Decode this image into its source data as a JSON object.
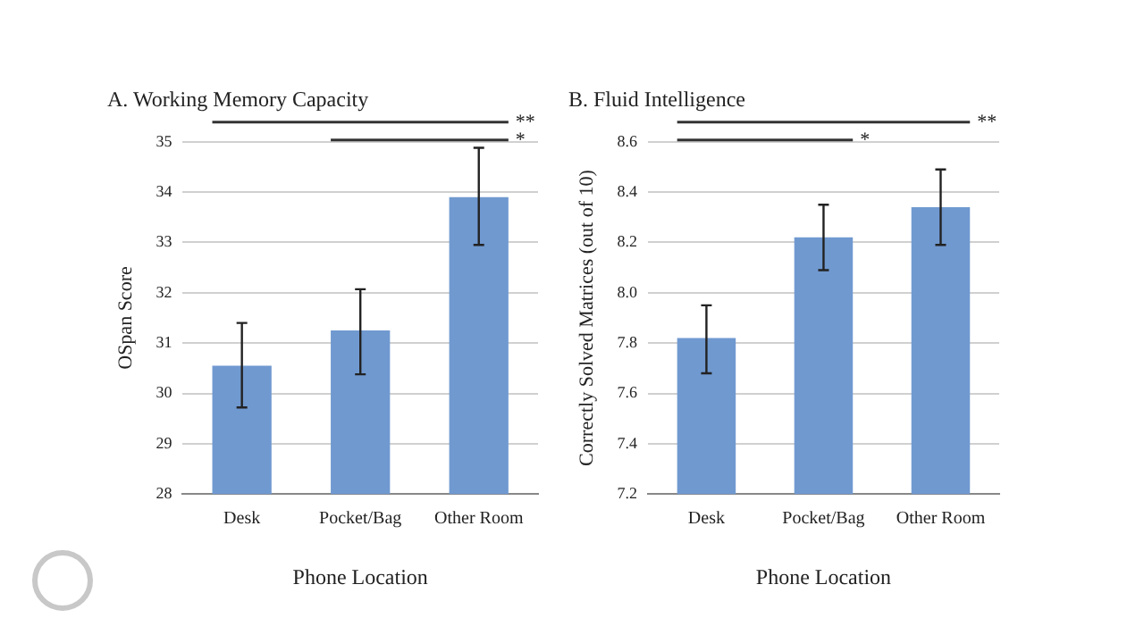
{
  "chart_data": [
    {
      "type": "bar",
      "title": "A. Working Memory Capacity",
      "xlabel": "Phone Location",
      "ylabel": "OSpan Score",
      "categories": [
        "Desk",
        "Pocket/Bag",
        "Other Room"
      ],
      "values": [
        30.55,
        31.25,
        33.9
      ],
      "errors": [
        [
          29.72,
          31.4
        ],
        [
          30.38,
          32.07
        ],
        [
          32.95,
          34.88
        ]
      ],
      "color": "#7099d0",
      "ylim": [
        28,
        35
      ],
      "yticks": [
        28,
        29,
        30,
        31,
        32,
        33,
        34,
        35
      ],
      "grid": "y",
      "legend": false,
      "annotations": [
        "**",
        "*"
      ]
    },
    {
      "type": "bar",
      "title": "B. Fluid Intelligence",
      "xlabel": "Phone Location",
      "ylabel": "Correctly Solved Matrices (out of 10)",
      "categories": [
        "Desk",
        "Pocket/Bag",
        "Other Room"
      ],
      "values": [
        7.82,
        8.22,
        8.34
      ],
      "errors": [
        [
          7.68,
          7.95
        ],
        [
          8.09,
          8.35
        ],
        [
          8.19,
          8.49
        ]
      ],
      "color": "#7099d0",
      "ylim": [
        7.2,
        8.6
      ],
      "yticks": [
        7.2,
        7.4,
        7.6,
        7.8,
        {
          "value": 8,
          "label": "8.0"
        },
        8.2,
        8.4,
        8.6
      ],
      "grid": "y",
      "legend": false,
      "annotations": [
        "**",
        "*"
      ]
    }
  ]
}
